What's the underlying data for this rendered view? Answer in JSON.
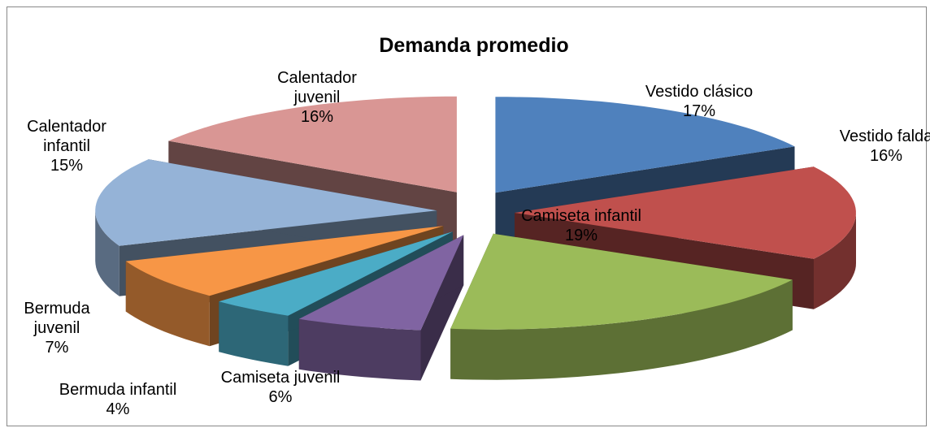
{
  "chart_data": {
    "type": "pie3d",
    "title": "Demanda promedio",
    "categories": [
      "Vestido clásico",
      "Vestido falda",
      "Camiseta infantil",
      "Camiseta juvenil",
      "Bermuda infantil",
      "Bermuda juvenil",
      "Calentador infantil",
      "Calentador juvenil"
    ],
    "values": [
      17,
      16,
      19,
      6,
      4,
      7,
      15,
      16
    ],
    "value_labels": [
      "17%",
      "16%",
      "19%",
      "6%",
      "4%",
      "7%",
      "15%",
      "16%"
    ],
    "colors": [
      "#4f81bd",
      "#c0504d",
      "#9bbb59",
      "#8064a2",
      "#4bacc6",
      "#f79646",
      "#95b3d7",
      "#d99694"
    ]
  }
}
